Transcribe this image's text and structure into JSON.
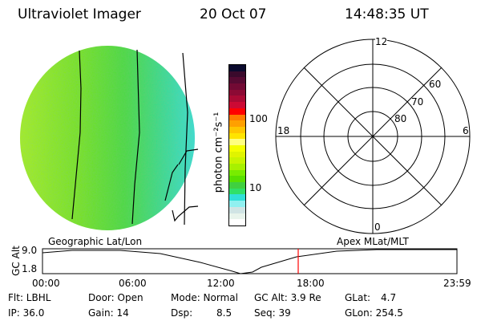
{
  "header": {
    "instrument": "Ultraviolet Imager",
    "date": "20 Oct 07",
    "time": "14:48:35 UT"
  },
  "colorbar": {
    "unit_label": "photon cm⁻²s⁻¹",
    "tick_labels": [
      "100",
      "10"
    ],
    "colors": [
      "#0a0a2e",
      "#3a0a2c",
      "#560a32",
      "#720a34",
      "#8c0a34",
      "#aa0a34",
      "#cc0a34",
      "#ff0000",
      "#ff7a00",
      "#ffa000",
      "#ffc600",
      "#ffe400",
      "#ffff80",
      "#f4ff00",
      "#e0f400",
      "#c8f400",
      "#a8f000",
      "#78ec00",
      "#58e000",
      "#40d040",
      "#30e068",
      "#30e0d8",
      "#90f0f0",
      "#d0e4e4",
      "#e8f4ec",
      "#ffffff"
    ]
  },
  "polar": {
    "mlt_labels": {
      "top": "12",
      "bottom": "0",
      "left": "18",
      "right": "6"
    },
    "lat_labels": [
      "80",
      "70",
      "60"
    ]
  },
  "timeline": {
    "left_title": "Geographic Lat/Lon",
    "right_title": "Apex MLat/MLT",
    "y_axis_label": "GC Alt",
    "y_ticks": [
      "9.0",
      "1.8"
    ],
    "x_ticks": [
      "00:00",
      "06:00",
      "12:00",
      "18:00",
      "23:59"
    ],
    "current_time_fraction": 0.617,
    "marker_color": "#ff0000"
  },
  "status": {
    "filter": "Flt: LBHL",
    "ip": "IP: 36.0",
    "door": "Door: Open",
    "gain": "Gain: 14",
    "mode": "Mode: Normal",
    "dsp_label": "Dsp:",
    "dsp_value": "8.5",
    "gc_alt": "GC Alt: 3.9 Re",
    "seq": "Seq: 39",
    "glat_label": "GLat:",
    "glat_value": "4.7",
    "glon": "GLon: 254.5"
  }
}
